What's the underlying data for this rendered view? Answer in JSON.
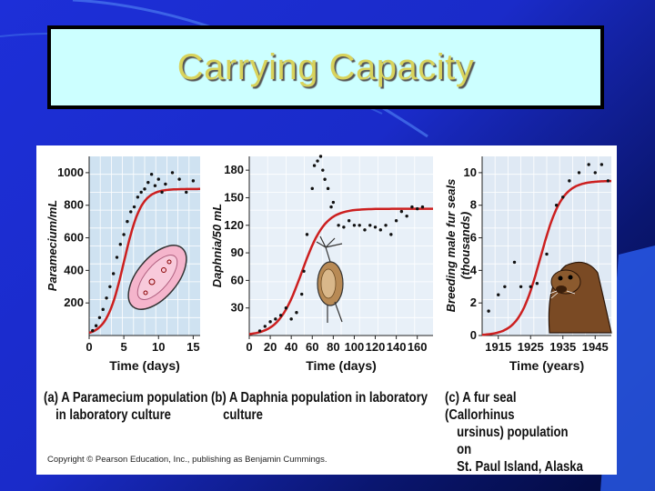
{
  "slide": {
    "title": "Carrying Capacity",
    "background": "#1d2fd8",
    "title_bg": "#ccffff",
    "title_color": "#d8d35c"
  },
  "copyright": "Copyright © Pearson Education, Inc., publishing as Benjamin Cummings.",
  "chart_data": [
    {
      "type": "scatter",
      "title": "",
      "xlabel": "Time (days)",
      "ylabel": "Paramecium/mL",
      "xlim": [
        0,
        16
      ],
      "ylim": [
        0,
        1100
      ],
      "xticks": [
        "0",
        "5",
        "10",
        "15"
      ],
      "yticks": [
        "200",
        "400",
        "600",
        "800",
        "1000"
      ],
      "curve_color": "#cc1f1f",
      "series": [
        {
          "x": [
            0.5,
            1,
            1.5,
            2,
            2.5,
            3,
            3.5,
            4,
            4.5,
            5,
            5.5,
            6,
            6.5,
            7,
            7.5,
            8,
            8.5,
            9,
            9.5,
            10,
            10.5,
            11,
            12,
            13,
            14,
            15
          ],
          "y": [
            30,
            60,
            110,
            160,
            230,
            300,
            380,
            480,
            560,
            620,
            700,
            760,
            790,
            850,
            880,
            900,
            940,
            990,
            920,
            960,
            880,
            930,
            1000,
            960,
            880,
            950
          ]
        }
      ],
      "curve": {
        "kind": "logistic",
        "K": 900,
        "r": 0.8,
        "x0": 5
      },
      "caption": [
        "(a) A Paramecium population",
        "in laboratory culture"
      ],
      "illustration": "paramecium"
    },
    {
      "type": "scatter",
      "title": "",
      "xlabel": "Time (days)",
      "ylabel": "Daphnia/50 mL",
      "xlim": [
        0,
        175
      ],
      "ylim": [
        0,
        195
      ],
      "xticks": [
        "0",
        "20",
        "40",
        "60",
        "80",
        "100",
        "120",
        "140",
        "160"
      ],
      "yticks": [
        "30",
        "60",
        "90",
        "120",
        "150",
        "180"
      ],
      "curve_color": "#cc1f1f",
      "series": [
        {
          "x": [
            10,
            15,
            20,
            25,
            30,
            35,
            40,
            45,
            50,
            52,
            55,
            60,
            62,
            65,
            68,
            70,
            72,
            75,
            78,
            80,
            85,
            90,
            95,
            100,
            105,
            110,
            115,
            120,
            125,
            130,
            135,
            140,
            145,
            150,
            155,
            160,
            165
          ],
          "y": [
            5,
            10,
            15,
            18,
            22,
            30,
            18,
            25,
            45,
            70,
            110,
            160,
            185,
            190,
            195,
            180,
            170,
            160,
            140,
            145,
            120,
            118,
            125,
            120,
            120,
            115,
            120,
            118,
            115,
            120,
            110,
            125,
            135,
            130,
            140,
            138,
            140
          ]
        }
      ],
      "curve": {
        "kind": "logistic",
        "K": 138,
        "r": 0.09,
        "x0": 50
      },
      "caption": [
        "(b) A Daphnia population in laboratory",
        "culture"
      ],
      "illustration": "daphnia"
    },
    {
      "type": "scatter",
      "title": "",
      "xlabel": "Time (years)",
      "ylabel": "Breeding male fur seals (thousands)",
      "xlim": [
        1910,
        1950
      ],
      "ylim": [
        0,
        11
      ],
      "xticks": [
        "1915",
        "1925",
        "1935",
        "1945"
      ],
      "yticks": [
        "0",
        "2",
        "4",
        "6",
        "8",
        "10"
      ],
      "curve_color": "#cc1f1f",
      "series": [
        {
          "x": [
            1912,
            1915,
            1917,
            1920,
            1922,
            1925,
            1927,
            1930,
            1933,
            1935,
            1937,
            1940,
            1943,
            1945,
            1947,
            1949
          ],
          "y": [
            1.5,
            2.5,
            3,
            4.5,
            3,
            3,
            3.2,
            5,
            8,
            8.5,
            9.5,
            10,
            10.5,
            10,
            10.5,
            9.5
          ]
        }
      ],
      "curve": {
        "kind": "logistic",
        "K": 9.5,
        "r": 0.3,
        "x0": 1928
      },
      "caption": [
        "(c) A fur seal (Callorhinus",
        "ursinus) population on",
        "St. Paul Island, Alaska"
      ],
      "illustration": "fur-seal"
    }
  ]
}
